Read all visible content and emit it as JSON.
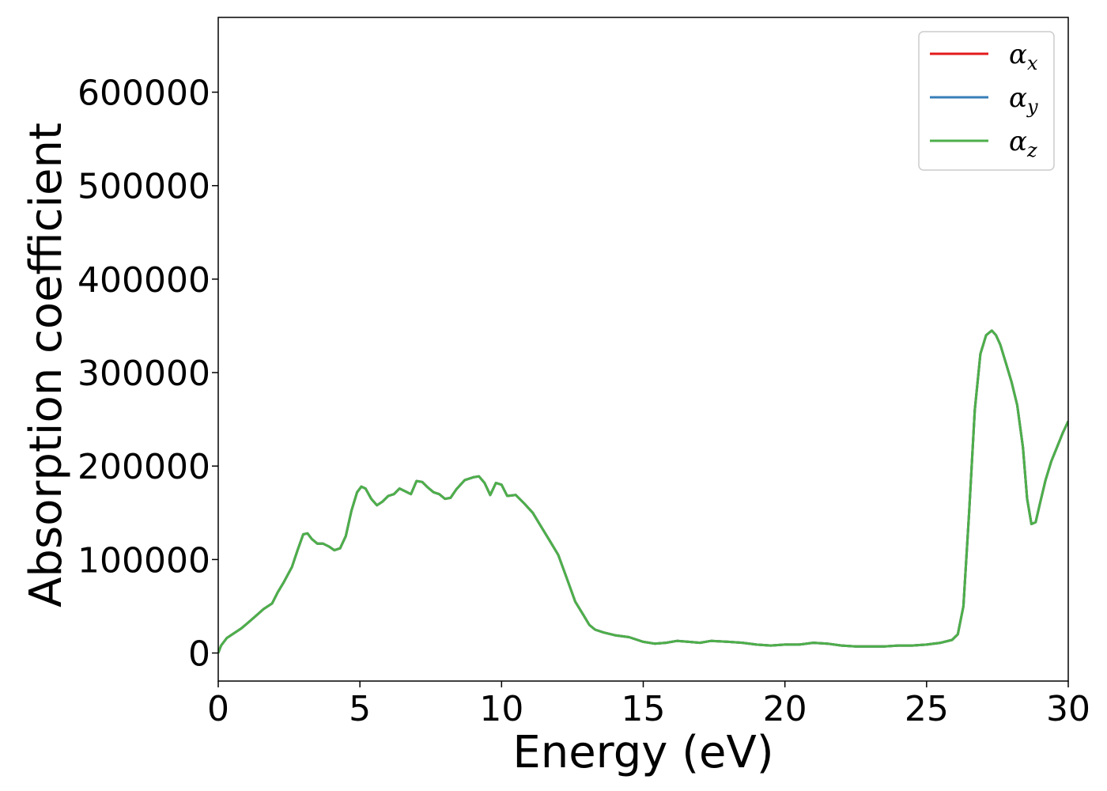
{
  "chart_data": {
    "type": "line",
    "title": "",
    "xlabel": "Energy (eV)",
    "ylabel": "Absorption coefficient",
    "xlim": [
      0,
      30
    ],
    "ylim": [
      -30000,
      680000
    ],
    "xticks": [
      0,
      5,
      10,
      15,
      20,
      25,
      30
    ],
    "xtick_labels": [
      "0",
      "5",
      "10",
      "15",
      "20",
      "25",
      "30"
    ],
    "yticks": [
      0,
      100000,
      200000,
      300000,
      400000,
      500000,
      600000
    ],
    "ytick_labels": [
      "0",
      "100000",
      "200000",
      "300000",
      "400000",
      "500000",
      "600000"
    ],
    "grid": false,
    "legend_position": "top-right",
    "series": [
      {
        "name": "αx",
        "symbol": "α",
        "subscript": "x",
        "color": "#e41a1c",
        "x": [
          0,
          0.1,
          0.3,
          0.5,
          0.8,
          1.0,
          1.3,
          1.6,
          1.9,
          2.1,
          2.3,
          2.6,
          2.8,
          3.0,
          3.15,
          3.3,
          3.5,
          3.7,
          3.9,
          4.1,
          4.3,
          4.5,
          4.7,
          4.9,
          5.05,
          5.2,
          5.4,
          5.6,
          5.8,
          6.0,
          6.2,
          6.4,
          6.6,
          6.8,
          7.0,
          7.2,
          7.4,
          7.6,
          7.8,
          8.0,
          8.2,
          8.4,
          8.7,
          9.0,
          9.2,
          9.4,
          9.6,
          9.8,
          10.0,
          10.2,
          10.5,
          10.8,
          11.1,
          11.4,
          11.7,
          12.0,
          12.3,
          12.6,
          12.9,
          13.1,
          13.3,
          13.6,
          14.0,
          14.5,
          15.0,
          15.4,
          15.8,
          16.2,
          16.6,
          17.0,
          17.4,
          18.0,
          18.5,
          19.0,
          19.5,
          20.0,
          20.5,
          21.0,
          21.5,
          22.0,
          22.5,
          23.0,
          23.5,
          24.0,
          24.5,
          25.0,
          25.5,
          25.9,
          26.1,
          26.3,
          26.5,
          26.7,
          26.9,
          27.1,
          27.3,
          27.45,
          27.6,
          27.8,
          28.0,
          28.2,
          28.4,
          28.55,
          28.7,
          28.85,
          29.0,
          29.2,
          29.4,
          29.6,
          29.8,
          30.0
        ],
        "y": [
          0,
          8000,
          16000,
          20000,
          26000,
          31000,
          39000,
          47000,
          53000,
          65000,
          75000,
          92000,
          110000,
          127000,
          128000,
          122000,
          117000,
          117000,
          114000,
          110000,
          112000,
          125000,
          152000,
          172000,
          178000,
          176000,
          165000,
          158000,
          162000,
          168000,
          170000,
          176000,
          173000,
          170000,
          184000,
          183000,
          177000,
          172000,
          170000,
          165000,
          166000,
          175000,
          185000,
          188000,
          189000,
          182000,
          169000,
          182000,
          180000,
          168000,
          169000,
          160000,
          150000,
          135000,
          120000,
          105000,
          80000,
          55000,
          40000,
          30000,
          25000,
          22000,
          19000,
          17000,
          12000,
          10000,
          11000,
          13000,
          12000,
          11000,
          13000,
          12000,
          11000,
          9000,
          8000,
          9000,
          9000,
          11000,
          10000,
          8000,
          7000,
          7000,
          7000,
          8000,
          8000,
          9000,
          11000,
          14000,
          20000,
          50000,
          150000,
          260000,
          320000,
          340000,
          345000,
          340000,
          330000,
          310000,
          290000,
          265000,
          220000,
          165000,
          138000,
          140000,
          160000,
          185000,
          205000,
          220000,
          235000,
          248000
        ]
      },
      {
        "name": "αy",
        "symbol": "α",
        "subscript": "y",
        "color": "#377eb8",
        "x": [
          0,
          0.1,
          0.3,
          0.5,
          0.8,
          1.0,
          1.3,
          1.6,
          1.9,
          2.1,
          2.3,
          2.6,
          2.8,
          3.0,
          3.15,
          3.3,
          3.5,
          3.7,
          3.9,
          4.1,
          4.3,
          4.5,
          4.7,
          4.9,
          5.05,
          5.2,
          5.4,
          5.6,
          5.8,
          6.0,
          6.2,
          6.4,
          6.6,
          6.8,
          7.0,
          7.2,
          7.4,
          7.6,
          7.8,
          8.0,
          8.2,
          8.4,
          8.7,
          9.0,
          9.2,
          9.4,
          9.6,
          9.8,
          10.0,
          10.2,
          10.5,
          10.8,
          11.1,
          11.4,
          11.7,
          12.0,
          12.3,
          12.6,
          12.9,
          13.1,
          13.3,
          13.6,
          14.0,
          14.5,
          15.0,
          15.4,
          15.8,
          16.2,
          16.6,
          17.0,
          17.4,
          18.0,
          18.5,
          19.0,
          19.5,
          20.0,
          20.5,
          21.0,
          21.5,
          22.0,
          22.5,
          23.0,
          23.5,
          24.0,
          24.5,
          25.0,
          25.5,
          25.9,
          26.1,
          26.3,
          26.5,
          26.7,
          26.9,
          27.1,
          27.3,
          27.45,
          27.6,
          27.8,
          28.0,
          28.2,
          28.4,
          28.55,
          28.7,
          28.85,
          29.0,
          29.2,
          29.4,
          29.6,
          29.8,
          30.0
        ],
        "y": [
          0,
          8000,
          16000,
          20000,
          26000,
          31000,
          39000,
          47000,
          53000,
          65000,
          75000,
          92000,
          110000,
          127000,
          128000,
          122000,
          117000,
          117000,
          114000,
          110000,
          112000,
          125000,
          152000,
          172000,
          178000,
          176000,
          165000,
          158000,
          162000,
          168000,
          170000,
          176000,
          173000,
          170000,
          184000,
          183000,
          177000,
          172000,
          170000,
          165000,
          166000,
          175000,
          185000,
          188000,
          189000,
          182000,
          169000,
          182000,
          180000,
          168000,
          169000,
          160000,
          150000,
          135000,
          120000,
          105000,
          80000,
          55000,
          40000,
          30000,
          25000,
          22000,
          19000,
          17000,
          12000,
          10000,
          11000,
          13000,
          12000,
          11000,
          13000,
          12000,
          11000,
          9000,
          8000,
          9000,
          9000,
          11000,
          10000,
          8000,
          7000,
          7000,
          7000,
          8000,
          8000,
          9000,
          11000,
          14000,
          20000,
          50000,
          150000,
          260000,
          320000,
          340000,
          345000,
          340000,
          330000,
          310000,
          290000,
          265000,
          220000,
          165000,
          138000,
          140000,
          160000,
          185000,
          205000,
          220000,
          235000,
          248000
        ]
      },
      {
        "name": "αz",
        "symbol": "α",
        "subscript": "z",
        "color": "#4daf4a",
        "x": [
          0,
          0.1,
          0.3,
          0.5,
          0.8,
          1.0,
          1.3,
          1.6,
          1.9,
          2.1,
          2.3,
          2.6,
          2.8,
          3.0,
          3.15,
          3.3,
          3.5,
          3.7,
          3.9,
          4.1,
          4.3,
          4.5,
          4.7,
          4.9,
          5.05,
          5.2,
          5.4,
          5.6,
          5.8,
          6.0,
          6.2,
          6.4,
          6.6,
          6.8,
          7.0,
          7.2,
          7.4,
          7.6,
          7.8,
          8.0,
          8.2,
          8.4,
          8.7,
          9.0,
          9.2,
          9.4,
          9.6,
          9.8,
          10.0,
          10.2,
          10.5,
          10.8,
          11.1,
          11.4,
          11.7,
          12.0,
          12.3,
          12.6,
          12.9,
          13.1,
          13.3,
          13.6,
          14.0,
          14.5,
          15.0,
          15.4,
          15.8,
          16.2,
          16.6,
          17.0,
          17.4,
          18.0,
          18.5,
          19.0,
          19.5,
          20.0,
          20.5,
          21.0,
          21.5,
          22.0,
          22.5,
          23.0,
          23.5,
          24.0,
          24.5,
          25.0,
          25.5,
          25.9,
          26.1,
          26.3,
          26.5,
          26.7,
          26.9,
          27.1,
          27.3,
          27.45,
          27.6,
          27.8,
          28.0,
          28.2,
          28.4,
          28.55,
          28.7,
          28.85,
          29.0,
          29.2,
          29.4,
          29.6,
          29.8,
          30.0
        ],
        "y": [
          0,
          8000,
          16000,
          20000,
          26000,
          31000,
          39000,
          47000,
          53000,
          65000,
          75000,
          92000,
          110000,
          127000,
          128000,
          122000,
          117000,
          117000,
          114000,
          110000,
          112000,
          125000,
          152000,
          172000,
          178000,
          176000,
          165000,
          158000,
          162000,
          168000,
          170000,
          176000,
          173000,
          170000,
          184000,
          183000,
          177000,
          172000,
          170000,
          165000,
          166000,
          175000,
          185000,
          188000,
          189000,
          182000,
          169000,
          182000,
          180000,
          168000,
          169000,
          160000,
          150000,
          135000,
          120000,
          105000,
          80000,
          55000,
          40000,
          30000,
          25000,
          22000,
          19000,
          17000,
          12000,
          10000,
          11000,
          13000,
          12000,
          11000,
          13000,
          12000,
          11000,
          9000,
          8000,
          9000,
          9000,
          11000,
          10000,
          8000,
          7000,
          7000,
          7000,
          8000,
          8000,
          9000,
          11000,
          14000,
          20000,
          50000,
          150000,
          260000,
          320000,
          340000,
          345000,
          340000,
          330000,
          310000,
          290000,
          265000,
          220000,
          165000,
          138000,
          140000,
          160000,
          185000,
          205000,
          220000,
          235000,
          248000
        ]
      }
    ]
  }
}
